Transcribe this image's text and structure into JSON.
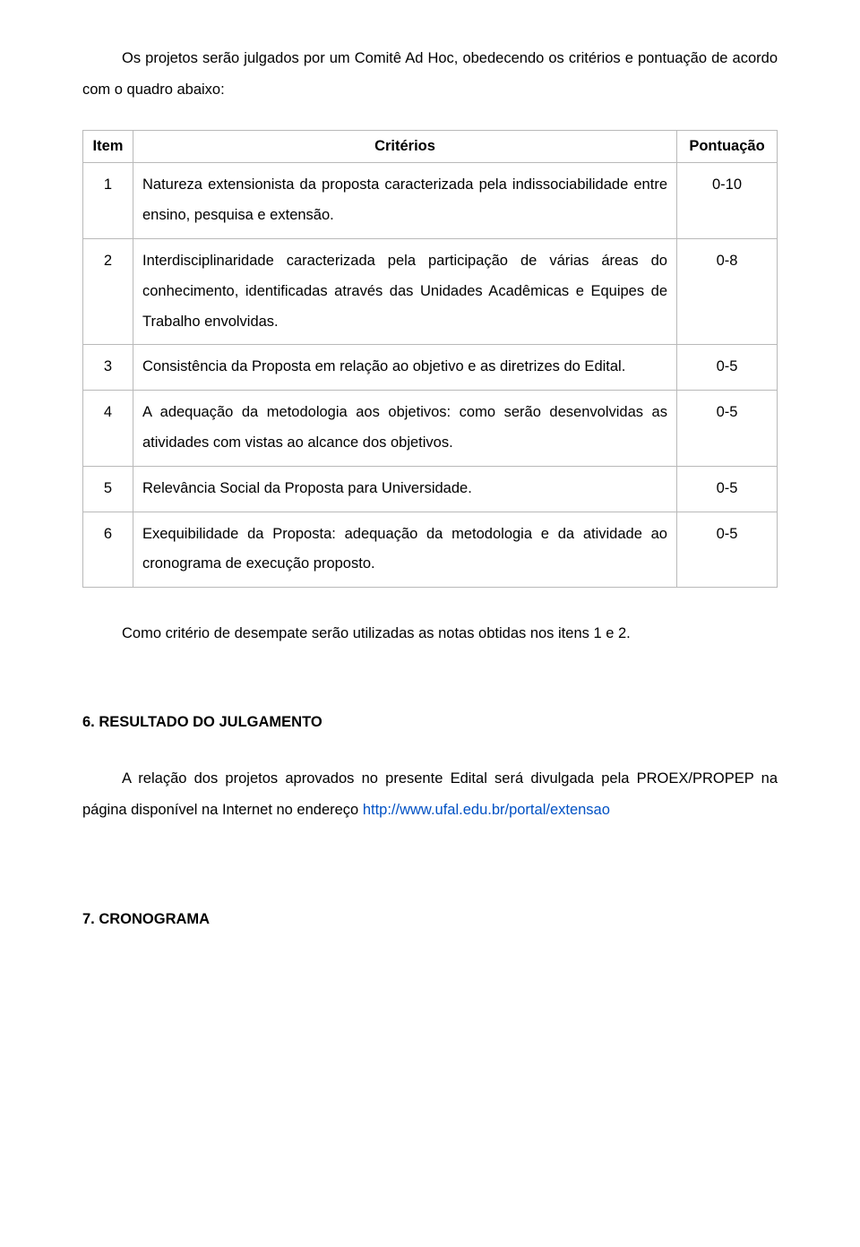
{
  "intro": "Os projetos serão julgados por um Comitê Ad Hoc, obedecendo os critérios e pontuação de acordo com o quadro abaixo:",
  "table": {
    "headers": {
      "item": "Item",
      "criterios": "Critérios",
      "pontuacao": "Pontuação"
    },
    "rows": [
      {
        "item": "1",
        "criterio": "Natureza extensionista da proposta caracterizada pela indissociabilidade entre ensino, pesquisa e extensão.",
        "pontuacao": "0-10"
      },
      {
        "item": "2",
        "criterio": "Interdisciplinaridade caracterizada pela participação de várias áreas do conhecimento, identificadas através das Unidades Acadêmicas e Equipes de Trabalho envolvidas.",
        "pontuacao": "0-8"
      },
      {
        "item": "3",
        "criterio": "Consistência da Proposta em relação ao objetivo e as diretrizes do Edital.",
        "pontuacao": "0-5"
      },
      {
        "item": "4",
        "criterio": "A adequação da metodologia aos objetivos: como serão desenvolvidas as atividades com vistas ao alcance dos objetivos.",
        "pontuacao": "0-5"
      },
      {
        "item": "5",
        "criterio": "Relevância Social da Proposta para Universidade.",
        "pontuacao": "0-5"
      },
      {
        "item": "6",
        "criterio": "Exequibilidade da Proposta: adequação da metodologia e da atividade ao cronograma de execução proposto.",
        "pontuacao": "0-5"
      }
    ]
  },
  "desempate": "Como critério de desempate serão utilizadas as notas obtidas nos itens 1 e 2.",
  "section6": {
    "heading": "6. RESULTADO DO JULGAMENTO",
    "body_pre": "A relação dos projetos aprovados no presente Edital será divulgada pela PROEX/PROPEP na página disponível na Internet no endereço ",
    "link": "http://www.ufal.edu.br/portal/extensao"
  },
  "section7": {
    "heading": "7. CRONOGRAMA"
  }
}
